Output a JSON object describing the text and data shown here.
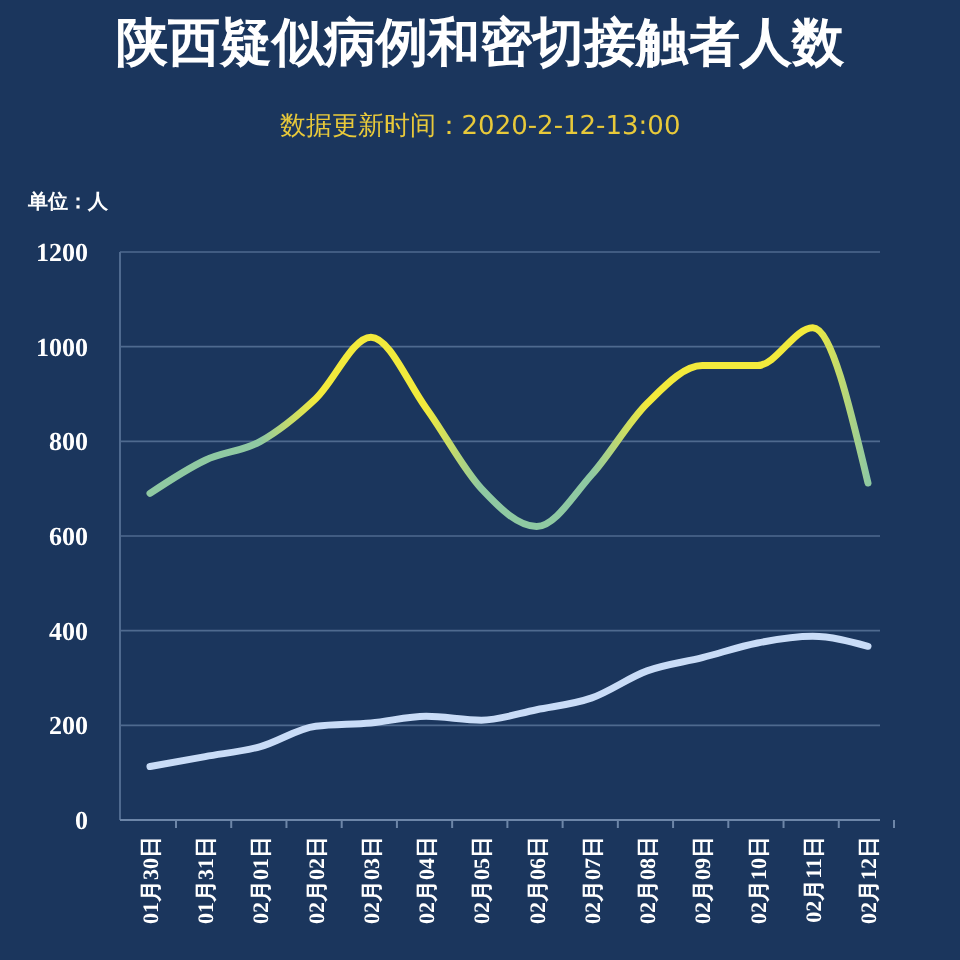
{
  "chart_data": {
    "type": "line",
    "title": "陕西疑似病例和密切接触者人数",
    "subtitle": "数据更新时间：2020-2-12-13:00",
    "ylabel": "单位：人",
    "categories": [
      "01月30日",
      "01月31日",
      "02月01日",
      "02月02日",
      "02月03日",
      "02月04日",
      "02月05日",
      "02月06日",
      "02月07日",
      "02月08日",
      "02月09日",
      "02月10日",
      "02月11日",
      "02月12日"
    ],
    "series": [
      {
        "colors": [
          "#8fc9a2",
          "#8fc9a2",
          "#8fc9a2",
          "#f2ea3c",
          "#f2ea3c",
          "#f2ea3c",
          "#8fc9a2",
          "#8fc9a2",
          "#8fc9a2",
          "#f2ea3c",
          "#f2ea3c",
          "#f2ea3c",
          "#f2ea3c",
          "#8fc9a2"
        ],
        "values": [
          690,
          760,
          800,
          890,
          1020,
          870,
          700,
          620,
          730,
          880,
          960,
          960,
          1040,
          712
        ]
      },
      {
        "color": "#c9dcf7",
        "values": [
          113,
          134,
          155,
          198,
          205,
          219,
          211,
          233,
          258,
          315,
          343,
          374,
          388,
          367
        ]
      }
    ],
    "ylim": [
      0,
      1200
    ],
    "yticks": [
      0,
      200,
      400,
      600,
      800,
      1000,
      1200
    ],
    "grid": "y",
    "marker": "none",
    "line_style": "solid"
  }
}
